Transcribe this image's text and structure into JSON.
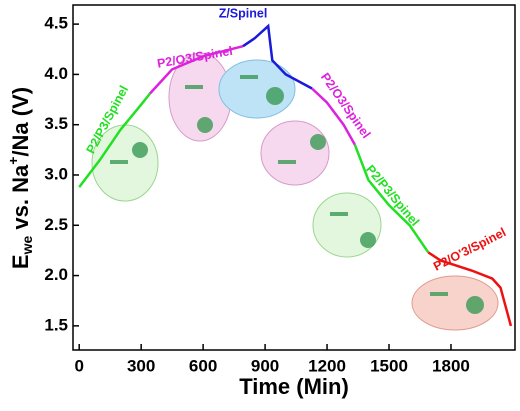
{
  "chart_data": {
    "type": "line",
    "x_label": "Time (Min)",
    "y_label": {
      "base": "E",
      "sub": "we",
      "main": " vs. Na",
      "sup": "+",
      "end": "/Na (V)"
    },
    "xlim": [
      -30,
      2110
    ],
    "xticks": [
      0,
      300,
      600,
      900,
      1200,
      1500,
      1800
    ],
    "ylim": [
      1.26,
      4.69
    ],
    "yticks": [
      1.5,
      {
        "value": 2,
        "label": "2.0"
      },
      2.5,
      {
        "value": 3,
        "label": "3.0"
      },
      3.5,
      {
        "value": 4,
        "label": "4.0"
      },
      4.5
    ],
    "series": [
      {
        "name": "P2/P3/Spinel",
        "color": "#22e022",
        "x": [
          0,
          100,
          200,
          300,
          343
        ],
        "values": [
          2.88,
          3.15,
          3.45,
          3.7,
          3.81
        ]
      },
      {
        "name": "P2/O3/Spinel",
        "color": "#dd22dd",
        "x": [
          343,
          450,
          600,
          793
        ],
        "values": [
          3.81,
          4.05,
          4.18,
          4.28
        ]
      },
      {
        "name": "Z/Spinel",
        "color": "#1a1adb",
        "x": [
          793,
          850,
          915,
          935,
          1000,
          1127
        ],
        "values": [
          4.28,
          4.36,
          4.48,
          4.14,
          4.0,
          3.86
        ]
      },
      {
        "name": "P2/O3/Spinel",
        "color": "#dd22dd",
        "x": [
          1127,
          1200,
          1280,
          1335
        ],
        "values": [
          3.86,
          3.72,
          3.5,
          3.3
        ]
      },
      {
        "name": "P2/P3/Spinel",
        "color": "#22e022",
        "x": [
          1335,
          1400,
          1500,
          1600,
          1690
        ],
        "values": [
          3.3,
          2.95,
          2.7,
          2.5,
          2.23
        ]
      },
      {
        "name": "P2/O'3/Spinel",
        "color": "#ee1111",
        "x": [
          1690,
          1750,
          1900,
          2000,
          2040,
          2090
        ],
        "values": [
          2.23,
          2.15,
          2.05,
          1.97,
          1.88,
          1.5
        ]
      }
    ]
  }
}
